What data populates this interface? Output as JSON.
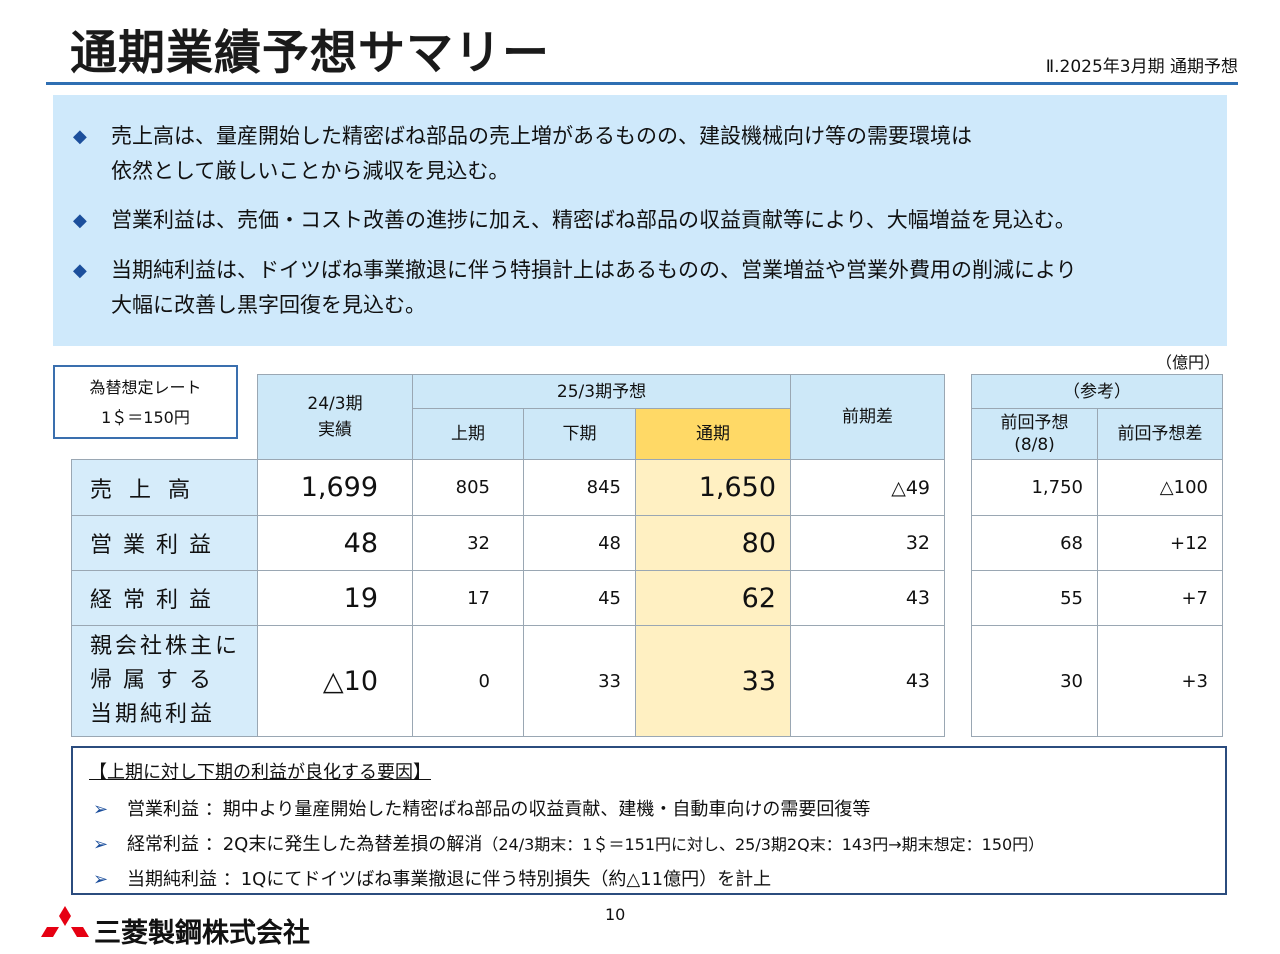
{
  "header": {
    "title": "通期業績予想サマリー",
    "section": "Ⅱ.2025年3月期 通期予想"
  },
  "summary": {
    "bullets": [
      {
        "line1": "売上高は、量産開始した精密ばね部品の売上増があるものの、建設機械向け等の需要環境は",
        "line2": "依然として厳しいことから減収を見込む。"
      },
      {
        "line1": "営業利益は、売価・コスト改善の進捗に加え、精密ばね部品の収益貢献等により、大幅増益を見込む。",
        "line2": ""
      },
      {
        "line1": "当期純利益は、ドイツばね事業撤退に伴う特損計上はあるものの、営業増益や営業外費用の削減により",
        "line2": "大幅に改善し黒字回復を見込む。"
      }
    ],
    "bullet_icon": "diamond-icon"
  },
  "rate_box": {
    "line1": "為替想定レート",
    "line2": "1＄＝150円"
  },
  "table": {
    "unit": "（億円）",
    "headers": {
      "prior": {
        "line1": "24/3期",
        "line2": "実績"
      },
      "forecast_group": "25/3期予想",
      "h1": "上期",
      "h2": "下期",
      "full": "通期",
      "yoy": "前期差",
      "ref_group": "（参考）",
      "prev_forecast": {
        "line1": "前回予想",
        "line2": "(8/8)"
      },
      "prev_diff": "前回予想差"
    },
    "rows": [
      {
        "label": "売上高",
        "prior": "1,699",
        "h1": "805",
        "h2": "845",
        "full": "1,650",
        "yoy": "△49",
        "prev": "1,750",
        "prev_diff": "△100"
      },
      {
        "label": "営業利益",
        "prior": "48",
        "h1": "32",
        "h2": "48",
        "full": "80",
        "yoy": "32",
        "prev": "68",
        "prev_diff": "+12"
      },
      {
        "label": "経常利益",
        "prior": "19",
        "h1": "17",
        "h2": "45",
        "full": "62",
        "yoy": "43",
        "prev": "55",
        "prev_diff": "+7"
      },
      {
        "label_lines": [
          "親会社株主に",
          "帰属する",
          "当期純利益"
        ],
        "prior": "△10",
        "h1": "0",
        "h2": "33",
        "full": "33",
        "yoy": "43",
        "prev": "30",
        "prev_diff": "+3"
      }
    ]
  },
  "factors": {
    "heading": "【上期に対し下期の利益が良化する要因】",
    "items": [
      {
        "text": "営業利益 ：期中より量産開始した精密ばね部品の収益貢献、建機・自動車向けの需要回復等",
        "note": ""
      },
      {
        "text": "経常利益 ：2Q末に発生した為替差損の解消",
        "note": "（24/3期末：1＄＝151円に対し、25/3期2Q末：143円→期末想定：150円）"
      },
      {
        "text": "当期純利益 ：1Qにてドイツばね事業撤退に伴う特別損失（約△11億円）を計上",
        "note": ""
      }
    ],
    "bullet_icon": "arrow-right-icon"
  },
  "footer": {
    "page_number": "10",
    "company": "三菱製鋼株式会社",
    "logo_icon": "three-diamond-logo-icon"
  },
  "colors": {
    "accent_rule": "#2f6fb3",
    "summary_bg": "#cfe9fb",
    "header_bg": "#cde8f8",
    "highlight_header": "#ffd966",
    "highlight_cells": "#fff0c2",
    "logo_red": "#e60012"
  }
}
